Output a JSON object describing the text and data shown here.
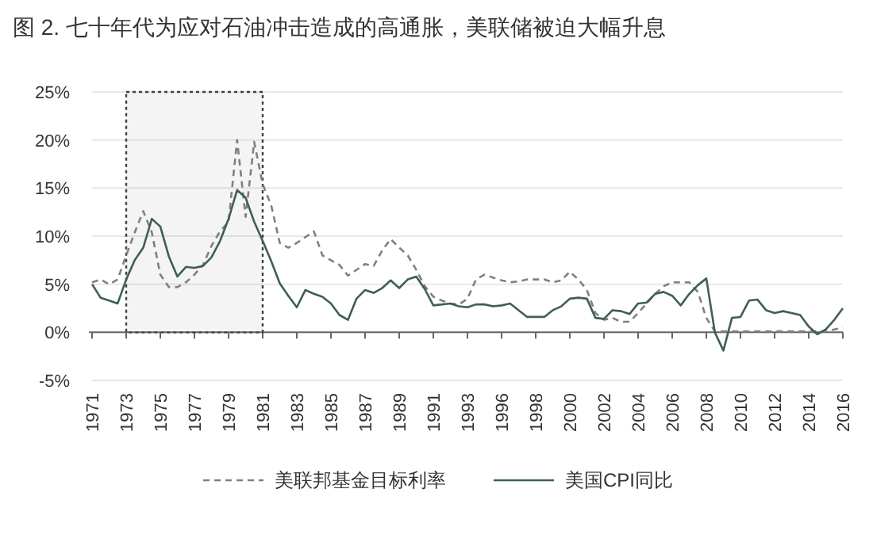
{
  "chart_data": {
    "type": "line",
    "title": "图 2. 七十年代为应对石油冲击造成的高通胀，美联储被迫大幅升息",
    "categories": [
      "1971",
      null,
      null,
      null,
      "1973",
      null,
      null,
      null,
      "1975",
      null,
      null,
      null,
      "1977",
      null,
      null,
      null,
      "1979",
      null,
      null,
      null,
      "1981",
      null,
      null,
      null,
      "1983",
      null,
      null,
      null,
      "1985",
      null,
      null,
      null,
      "1987",
      null,
      null,
      null,
      "1989",
      null,
      null,
      null,
      "1991",
      null,
      null,
      null,
      "1993",
      null,
      null,
      null,
      "1996",
      null,
      null,
      null,
      "1998",
      null,
      null,
      null,
      "2000",
      null,
      null,
      null,
      "2002",
      null,
      null,
      null,
      "2004",
      null,
      null,
      null,
      "2006",
      null,
      null,
      null,
      "2008",
      null,
      null,
      null,
      "2010",
      null,
      null,
      null,
      "2012",
      null,
      null,
      null,
      "2014",
      null,
      null,
      null,
      "2016"
    ],
    "series": [
      {
        "name": "美联邦基金目标利率",
        "color": "#808080",
        "line_style": "dashed",
        "values": [
          5.2,
          5.5,
          5.0,
          5.5,
          8.0,
          10.4,
          12.6,
          10.4,
          6.0,
          4.7,
          4.7,
          5.2,
          6.0,
          7.0,
          9.0,
          10.5,
          11.5,
          20.0,
          12.0,
          19.8,
          15.4,
          13.2,
          9.3,
          8.8,
          9.3,
          9.9,
          10.5,
          8.0,
          7.5,
          7.0,
          5.9,
          6.5,
          7.1,
          6.9,
          8.5,
          9.7,
          8.8,
          8.0,
          6.5,
          4.8,
          3.7,
          3.3,
          3.0,
          2.9,
          3.5,
          5.5,
          6.0,
          5.7,
          5.4,
          5.2,
          5.3,
          5.5,
          5.5,
          5.5,
          5.2,
          5.4,
          6.3,
          5.5,
          4.4,
          2.0,
          1.3,
          1.5,
          1.1,
          1.1,
          2.0,
          3.0,
          4.0,
          4.8,
          5.2,
          5.2,
          5.2,
          4.2,
          1.5,
          0.1,
          0.1,
          0.1,
          0.1,
          0.1,
          0.1,
          0.1,
          0.1,
          0.1,
          0.1,
          0.1,
          0.1,
          0.1,
          0.1,
          0.3,
          0.5
        ]
      },
      {
        "name": "美国CPI同比",
        "color": "#3d5f5a",
        "line_style": "solid",
        "values": [
          5.0,
          3.6,
          3.3,
          3.0,
          5.5,
          7.5,
          8.8,
          11.8,
          11.0,
          7.9,
          5.8,
          6.8,
          6.7,
          6.9,
          7.8,
          9.5,
          11.8,
          14.8,
          14.0,
          11.5,
          9.5,
          7.4,
          5.1,
          3.8,
          2.6,
          4.4,
          4.0,
          3.7,
          3.0,
          1.8,
          1.3,
          3.5,
          4.4,
          4.1,
          4.6,
          5.4,
          4.6,
          5.5,
          5.8,
          4.5,
          2.8,
          2.9,
          3.0,
          2.7,
          2.6,
          2.9,
          2.9,
          2.7,
          2.8,
          3.0,
          2.3,
          1.6,
          1.6,
          1.6,
          2.3,
          2.7,
          3.5,
          3.6,
          3.5,
          1.5,
          1.4,
          2.3,
          2.2,
          1.9,
          3.0,
          3.1,
          4.0,
          4.2,
          3.8,
          2.8,
          4.0,
          4.9,
          5.6,
          0.0,
          -1.9,
          1.5,
          1.6,
          3.3,
          3.4,
          2.3,
          2.0,
          2.2,
          2.0,
          1.8,
          0.6,
          -0.2,
          0.3,
          1.3,
          2.5
        ]
      }
    ],
    "ylim": [
      -5,
      25
    ],
    "yticks": [
      {
        "value": -5,
        "label": "-5%"
      },
      {
        "value": 0,
        "label": "0%"
      },
      {
        "value": 5,
        "label": "5%"
      },
      {
        "value": 10,
        "label": "10%"
      },
      {
        "value": 15,
        "label": "15%"
      },
      {
        "value": 20,
        "label": "20%"
      },
      {
        "value": 25,
        "label": "25%"
      }
    ],
    "bands": [
      {
        "axis": "x",
        "from": "1973",
        "to": "1981",
        "color": "#404040"
      }
    ],
    "grid": "y",
    "legend": "bottom",
    "marker": "none"
  }
}
